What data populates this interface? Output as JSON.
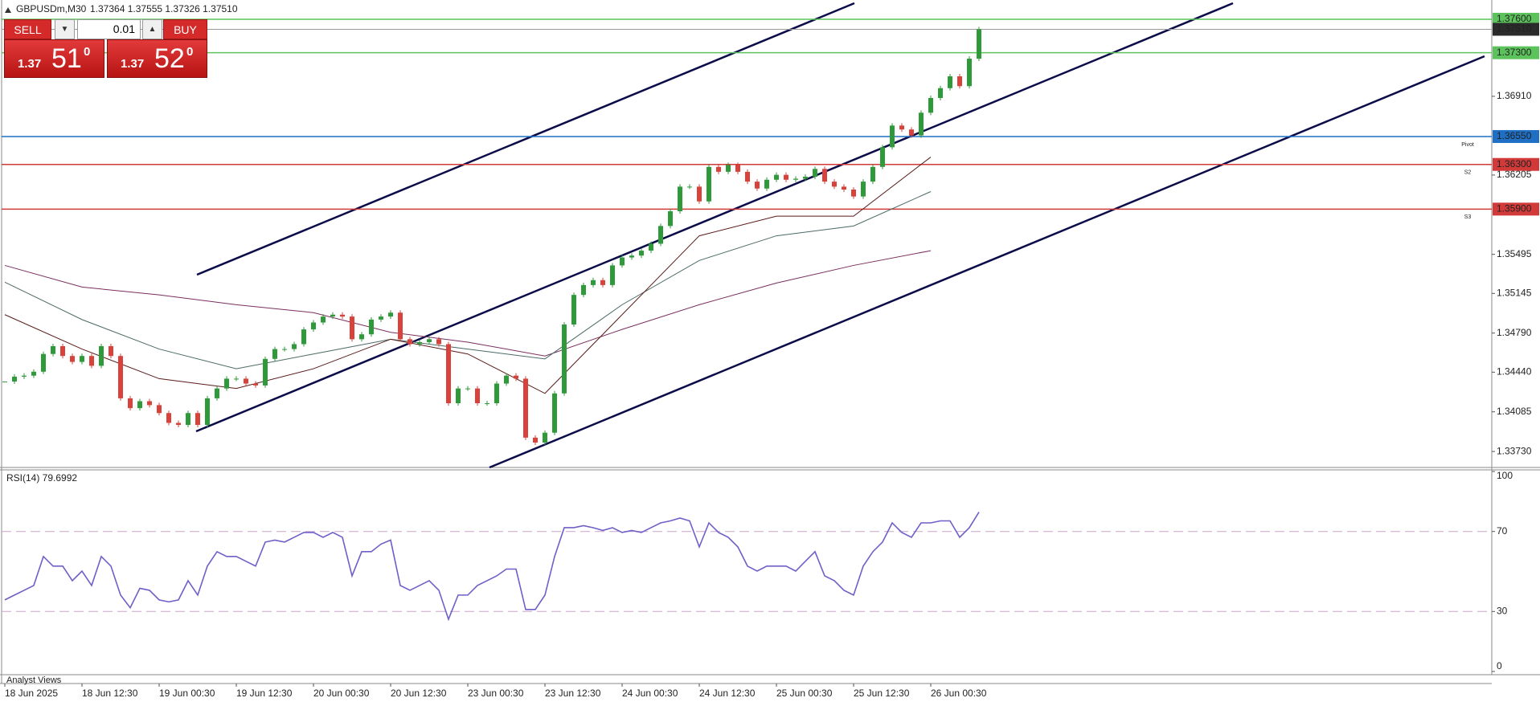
{
  "trade_panel": {
    "sell": "SELL",
    "buy": "BUY",
    "lot": "0.01",
    "sell_price": {
      "big": "1.37",
      "pips": "51",
      "point": "0"
    },
    "buy_price": {
      "big": "1.37",
      "pips": "52",
      "point": "0"
    }
  },
  "footer": "Analyst Views",
  "chart_data": [
    {
      "type": "candlestick",
      "title": "GBPUSDm,M30",
      "subtitle": "1.37364 1.37555 1.37326 1.37510",
      "up_color": "#2e9a3a",
      "down_color": "#d8423a",
      "values": [
        1.34356,
        1.344,
        1.34409,
        1.34444,
        1.34603,
        1.34673,
        1.34585,
        1.34532,
        1.34585,
        1.34497,
        1.34673,
        1.34585,
        1.34206,
        1.34118,
        1.3418,
        1.34145,
        1.34074,
        1.33986,
        1.33968,
        1.34074,
        1.33968,
        1.34206,
        1.34294,
        1.34382,
        1.34382,
        1.34338,
        1.34321,
        1.34559,
        1.34647,
        1.34647,
        1.34691,
        1.34823,
        1.34885,
        1.34938,
        1.34955,
        1.34938,
        1.34735,
        1.34779,
        1.34911,
        1.34938,
        1.34973,
        1.34735,
        1.34691,
        1.34709,
        1.34735,
        1.34691,
        1.34162,
        1.34294,
        1.34294,
        1.34162,
        1.34162,
        1.34338,
        1.34409,
        1.34382,
        1.33854,
        1.3381,
        1.33898,
        1.3425,
        1.34867,
        1.35132,
        1.3522,
        1.35264,
        1.3522,
        1.35396,
        1.35467,
        1.35484,
        1.35528,
        1.3559,
        1.35749,
        1.35881,
        1.36101,
        1.36101,
        1.35969,
        1.36278,
        1.36234,
        1.36295,
        1.36234,
        1.36146,
        1.36084,
        1.36163,
        1.36207,
        1.36163,
        1.36172,
        1.3619,
        1.3626,
        1.36146,
        1.36101,
        1.36075,
        1.36013,
        1.36146,
        1.36278,
        1.36454,
        1.36648,
        1.36613,
        1.3656,
        1.36763,
        1.36895,
        1.36983,
        1.37089,
        1.37001,
        1.37247,
        1.3751
      ],
      "ma_lines": [
        {
          "color": "#7a2e5e",
          "values": [
            1.35396,
            1.35202,
            1.35132,
            1.35044,
            1.34973,
            1.34797,
            1.34709,
            1.34585,
            1.34823,
            1.35044,
            1.35238,
            1.35396,
            1.35528
          ]
        },
        {
          "color": "#4a6a66",
          "values": [
            1.35246,
            1.34911,
            1.34647,
            1.34471,
            1.34603,
            1.34735,
            1.34647,
            1.34559,
            1.35044,
            1.3544,
            1.35661,
            1.35749,
            1.36057
          ]
        },
        {
          "color": "#5a1a1a",
          "values": [
            1.34955,
            1.34647,
            1.34382,
            1.34294,
            1.34471,
            1.34735,
            1.34603,
            1.3425,
            1.34955,
            1.35661,
            1.35837,
            1.35837,
            1.36366
          ]
        }
      ],
      "time_labels": [
        "18 Jun 2025",
        "18 Jun 12:30",
        "19 Jun 00:30",
        "19 Jun 12:30",
        "20 Jun 00:30",
        "20 Jun 12:30",
        "23 Jun 00:30",
        "23 Jun 12:30",
        "24 Jun 00:30",
        "24 Jun 12:30",
        "25 Jun 00:30",
        "25 Jun 12:30",
        "26 Jun 00:30"
      ],
      "ylim": [
        1.3363,
        1.3765
      ],
      "yticks": [
        {
          "value": 1.3691,
          "label": "1.36910"
        },
        {
          "value": 1.36205,
          "label": "1.36205"
        },
        {
          "value": 1.35495,
          "label": "1.35495"
        },
        {
          "value": 1.35145,
          "label": "1.35145"
        },
        {
          "value": 1.3479,
          "label": "1.34790"
        },
        {
          "value": 1.3444,
          "label": "1.34440"
        },
        {
          "value": 1.34085,
          "label": "1.34085"
        },
        {
          "value": 1.3373,
          "label": "1.33730"
        }
      ],
      "levels": [
        {
          "value": 1.376,
          "label": "1.37600",
          "color": "#5cc35c"
        },
        {
          "value": 1.373,
          "label": "1.37300",
          "color": "#5cc35c"
        },
        {
          "value": 1.3655,
          "label": "1.36550",
          "color": "#1f6fc5",
          "name": "Pivot"
        },
        {
          "value": 1.363,
          "label": "1.36300",
          "color": "#d23a3a",
          "name": "S2"
        },
        {
          "value": 1.359,
          "label": "1.35900",
          "color": "#d23a3a",
          "name": "S3"
        }
      ],
      "last": {
        "value": 1.3751,
        "label": "1.37510",
        "color": "#2b2b2b"
      }
    },
    {
      "type": "line",
      "title": "RSI(14) 79.6992",
      "color": "#6f5fc8",
      "values": [
        35.8,
        38.2,
        40.6,
        43,
        57.5,
        52.7,
        52.7,
        45.4,
        50.2,
        43,
        57.5,
        52.7,
        38.2,
        31.9,
        41.6,
        40.6,
        35.8,
        34.8,
        35.8,
        45.4,
        38.2,
        52.7,
        59.9,
        57.5,
        57.5,
        55.1,
        52.7,
        64.7,
        65.7,
        64.7,
        67.1,
        69.5,
        69.5,
        67.1,
        69.5,
        67.1,
        47.8,
        59.9,
        59.9,
        63.7,
        65.7,
        43,
        40.6,
        43,
        45.4,
        40.6,
        26.1,
        38.2,
        38.2,
        43,
        45.4,
        47.8,
        51.2,
        51.2,
        31,
        31,
        38.2,
        57.5,
        71.9,
        71.9,
        72.9,
        71.9,
        70.5,
        71.9,
        69.5,
        70.5,
        69.5,
        71.9,
        74.3,
        75.3,
        76.7,
        75.3,
        62.3,
        74.3,
        69.5,
        67.1,
        62.3,
        52.7,
        50.2,
        52.7,
        52.7,
        52.7,
        50.2,
        55.1,
        59.9,
        47.8,
        45.4,
        40.6,
        38.2,
        52.7,
        59.9,
        64.7,
        74.3,
        69.5,
        67.1,
        74.3,
        74.3,
        75.3,
        75.3,
        67.1,
        71.9,
        79.6992
      ],
      "ylim": [
        0,
        100
      ],
      "yticks": [
        0,
        30,
        70,
        100
      ],
      "levels": [
        70,
        30
      ],
      "level_color": "#c9a3c9"
    }
  ]
}
